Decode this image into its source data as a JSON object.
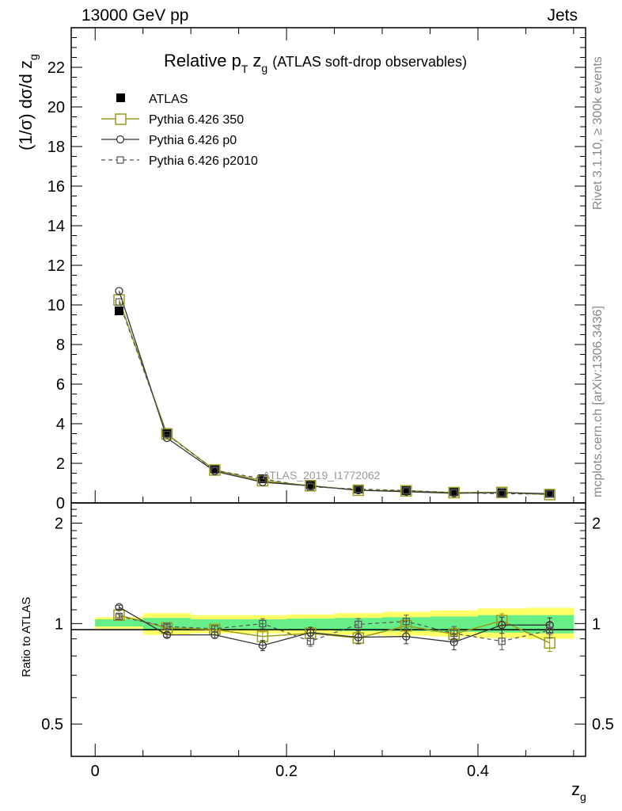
{
  "header": {
    "left": "13000 GeV pp",
    "right": "Jets"
  },
  "side_labels": {
    "rivet": "Rivet 3.1.10, ≥ 300k events",
    "mcplots": "mcplots.cern.ch [arXiv:1306.3436]"
  },
  "colors": {
    "atlas": "#000000",
    "p350": "#9a9a1e",
    "p0": "#333333",
    "p2010": "#555555",
    "band_inner": "#66ee88",
    "band_outer": "#ffff66"
  },
  "chart_data": [
    {
      "type": "line",
      "title": "Relative p",
      "title_sub": "T",
      "title_zg": "z",
      "title_zg_sub": "g",
      "title_paren": "(ATLAS soft-drop observables)",
      "ylabel": "(1/σ) dσ/d z",
      "ylabel_sub": "g",
      "xlim": [
        -0.025,
        0.5125
      ],
      "ylim": [
        0,
        24
      ],
      "yticks": [
        0,
        2,
        4,
        6,
        8,
        10,
        12,
        14,
        16,
        18,
        20,
        22
      ],
      "ytick_labels": [
        "0",
        "2",
        "4",
        "6",
        "8",
        "10",
        "12",
        "14",
        "16",
        "18",
        "20",
        "22"
      ],
      "watermark": "ATLAS_2019_I1772062",
      "x": [
        0.025,
        0.075,
        0.125,
        0.175,
        0.225,
        0.275,
        0.325,
        0.375,
        0.425,
        0.475
      ],
      "legend": [
        {
          "name": "ATLAS",
          "style": "filled-square"
        },
        {
          "name": "Pythia 6.426 350",
          "style": "open-square-line"
        },
        {
          "name": "Pythia 6.426 p0",
          "style": "open-circle-line"
        },
        {
          "name": "Pythia 6.426 p2010",
          "style": "small-square-dashed"
        }
      ],
      "series": [
        {
          "name": "ATLAS",
          "values": [
            9.7,
            3.55,
            1.72,
            1.22,
            0.92,
            0.7,
            0.62,
            0.56,
            0.52,
            0.48
          ]
        },
        {
          "name": "Pythia 6.426 350",
          "values": [
            10.25,
            3.48,
            1.66,
            1.12,
            0.87,
            0.64,
            0.61,
            0.52,
            0.53,
            0.42
          ]
        },
        {
          "name": "Pythia 6.426 p0",
          "values": [
            10.7,
            3.28,
            1.6,
            1.05,
            0.86,
            0.64,
            0.57,
            0.49,
            0.52,
            0.47
          ]
        },
        {
          "name": "Pythia 6.426 p2010",
          "values": [
            10.15,
            3.45,
            1.65,
            1.22,
            0.81,
            0.7,
            0.63,
            0.52,
            0.46,
            0.45
          ]
        }
      ]
    },
    {
      "type": "line",
      "ylabel": "Ratio to ATLAS",
      "xlabel": "z",
      "xlabel_sub": "g",
      "scale": "log",
      "ylim": [
        0.4,
        2.3
      ],
      "yticks": [
        0.5,
        1,
        2
      ],
      "ytick_labels": [
        "0.5",
        "1",
        "2"
      ],
      "xticks": [
        0,
        0.2,
        0.4
      ],
      "xtick_labels": [
        "0",
        "0.2",
        "0.4"
      ],
      "x": [
        0.025,
        0.075,
        0.125,
        0.175,
        0.225,
        0.275,
        0.325,
        0.375,
        0.425,
        0.475
      ],
      "band": {
        "inner": [
          [
            0.98,
            1.03
          ],
          [
            0.955,
            1.04
          ],
          [
            0.96,
            1.03
          ],
          [
            0.96,
            1.03
          ],
          [
            0.955,
            1.035
          ],
          [
            0.95,
            1.04
          ],
          [
            0.95,
            1.045
          ],
          [
            0.945,
            1.05
          ],
          [
            0.94,
            1.06
          ],
          [
            0.935,
            1.06
          ]
        ],
        "outer": [
          [
            0.965,
            1.045
          ],
          [
            0.925,
            1.075
          ],
          [
            0.935,
            1.06
          ],
          [
            0.935,
            1.06
          ],
          [
            0.93,
            1.065
          ],
          [
            0.925,
            1.075
          ],
          [
            0.92,
            1.085
          ],
          [
            0.915,
            1.095
          ],
          [
            0.905,
            1.11
          ],
          [
            0.9,
            1.115
          ]
        ]
      },
      "series": [
        {
          "name": "Pythia 6.426 350",
          "values": [
            1.06,
            0.97,
            0.96,
            0.915,
            0.935,
            0.905,
            0.985,
            0.93,
            1.02,
            0.875
          ],
          "err": [
            0.015,
            0.015,
            0.02,
            0.03,
            0.03,
            0.035,
            0.04,
            0.04,
            0.05,
            0.05
          ]
        },
        {
          "name": "Pythia 6.426 p0",
          "values": [
            1.12,
            0.925,
            0.925,
            0.86,
            0.94,
            0.91,
            0.915,
            0.88,
            0.99,
            0.99
          ],
          "err": [
            0.015,
            0.015,
            0.02,
            0.03,
            0.035,
            0.04,
            0.045,
            0.045,
            0.055,
            0.05
          ]
        },
        {
          "name": "Pythia 6.426 p2010",
          "values": [
            1.05,
            0.98,
            0.965,
            1.0,
            0.885,
            0.995,
            1.015,
            0.935,
            0.885,
            0.955
          ],
          "err": [
            0.015,
            0.015,
            0.02,
            0.035,
            0.03,
            0.04,
            0.045,
            0.045,
            0.05,
            0.05
          ]
        }
      ]
    }
  ]
}
